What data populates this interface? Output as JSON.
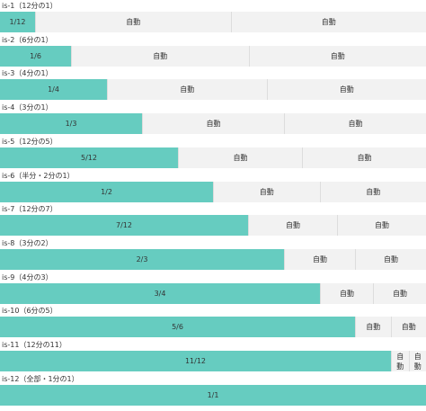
{
  "colors": {
    "fixed_cell": "#66ccc0",
    "auto_cell": "#f2f2f2",
    "border": "#dddddd",
    "text": "#333333"
  },
  "auto_label": "自動",
  "rows": [
    {
      "label": "is-1（12分の1）",
      "fraction": "1/12",
      "ratio": 0.0833
    },
    {
      "label": "is-2（6分の1）",
      "fraction": "1/6",
      "ratio": 0.1667
    },
    {
      "label": "is-3（4分の1）",
      "fraction": "1/4",
      "ratio": 0.25
    },
    {
      "label": "is-4（3分の1）",
      "fraction": "1/3",
      "ratio": 0.3333
    },
    {
      "label": "is-5（12分の5）",
      "fraction": "5/12",
      "ratio": 0.4167
    },
    {
      "label": "is-6（半分・2分の1）",
      "fraction": "1/2",
      "ratio": 0.5
    },
    {
      "label": "is-7（12分の7）",
      "fraction": "7/12",
      "ratio": 0.5833
    },
    {
      "label": "is-8（3分の2）",
      "fraction": "2/3",
      "ratio": 0.6667
    },
    {
      "label": "is-9（4分の3）",
      "fraction": "3/4",
      "ratio": 0.75
    },
    {
      "label": "is-10（6分の5）",
      "fraction": "5/6",
      "ratio": 0.8333
    },
    {
      "label": "is-11（12分の11）",
      "fraction": "11/12",
      "ratio": 0.9167
    },
    {
      "label": "is-12（全部・1分の1）",
      "fraction": "1/1",
      "ratio": 1.0
    }
  ]
}
